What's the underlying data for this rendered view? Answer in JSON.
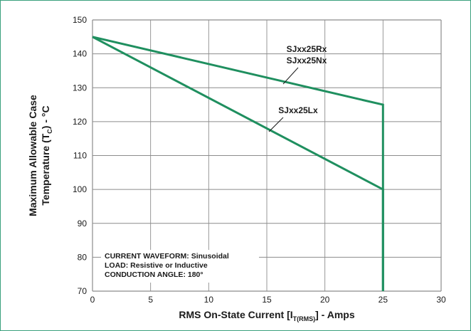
{
  "chart_data": {
    "type": "line",
    "title": "",
    "xlabel": {
      "prefix": "RMS On-State Current [I",
      "sub": "T(RMS)",
      "suffix": "] - Amps"
    },
    "ylabel": {
      "line1": "Maximum Allowable Case",
      "line2_prefix": "Temperature (T",
      "line2_sub": "C",
      "line2_suffix": ") - °C"
    },
    "xlim": [
      0,
      30
    ],
    "ylim": [
      70,
      150
    ],
    "x_ticks": [
      "0",
      "5",
      "10",
      "15",
      "20",
      "25",
      "30"
    ],
    "y_ticks": [
      "70",
      "80",
      "90",
      "100",
      "110",
      "120",
      "130",
      "140",
      "150"
    ],
    "grid": true,
    "line_color": "#1f8f5f",
    "grid_color": "#8c8c8c",
    "frame_color": "#3aa07d",
    "series": [
      {
        "name_lines": [
          "SJxx25Rx",
          "SJxx25Nx"
        ],
        "x": [
          0,
          25,
          25
        ],
        "y": [
          145,
          125,
          70
        ]
      },
      {
        "name_lines": [
          "SJxx25Lx"
        ],
        "x": [
          0,
          25,
          25
        ],
        "y": [
          145,
          100,
          70
        ]
      }
    ],
    "notes": [
      "CURRENT WAVEFORM: Sinusoidal",
      "LOAD: Resistive or Inductive",
      "CONDUCTION ANGLE: 180°"
    ]
  }
}
